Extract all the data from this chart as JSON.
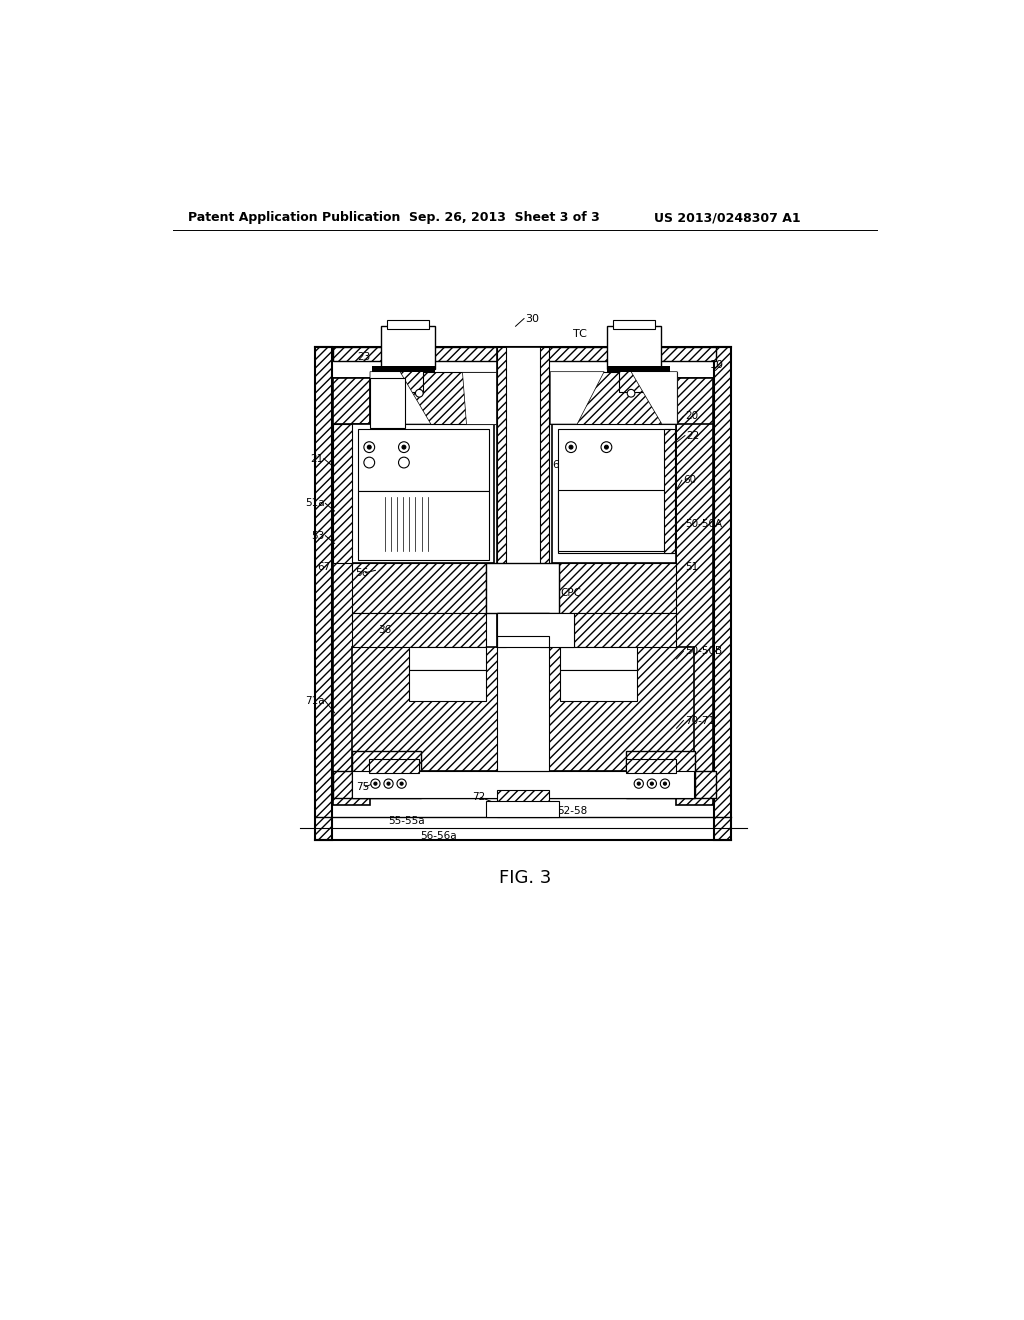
{
  "header_left": "Patent Application Publication",
  "header_center": "Sep. 26, 2013  Sheet 3 of 3",
  "header_right": "US 2013/0248307 A1",
  "fig_label": "FIG. 3",
  "bg_color": "#ffffff"
}
